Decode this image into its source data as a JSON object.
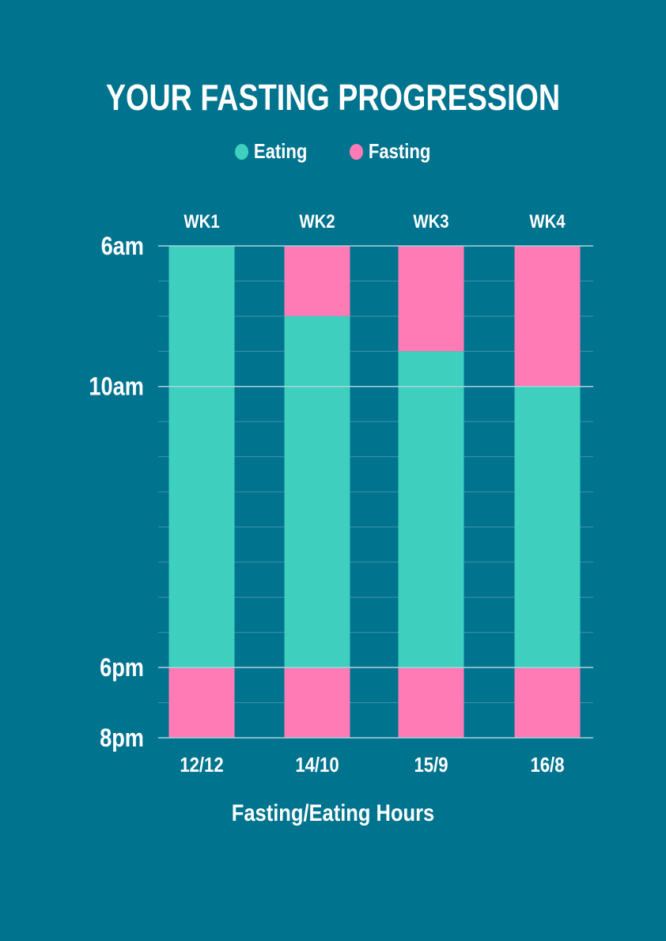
{
  "header": {
    "title": "YOUR FASTING PROGRESSION"
  },
  "legend": [
    {
      "label": "Eating",
      "color": "#3ECFBF"
    },
    {
      "label": "Fasting",
      "color": "#FF7BB6"
    }
  ],
  "chart_data": {
    "type": "bar",
    "title": "YOUR FASTING PROGRESSION",
    "xlabel": "Fasting/Eating Hours",
    "ylabel": "",
    "weeks": [
      "WK1",
      "WK2",
      "WK3",
      "WK4"
    ],
    "categories": [
      "12/12",
      "14/10",
      "15/9",
      "16/8"
    ],
    "y_axis": {
      "start_label": "6am",
      "end_label": "8pm",
      "span_hours": 14,
      "tick_labels": [
        {
          "label": "6am",
          "hour": 0
        },
        {
          "label": "10am",
          "hour": 4
        },
        {
          "label": "6pm",
          "hour": 12
        },
        {
          "label": "8pm",
          "hour": 14
        }
      ]
    },
    "bars": [
      {
        "week": "WK1",
        "category": "12/12",
        "eating_start": "6am",
        "eating_end": "6pm",
        "eating_start_hour": 0,
        "eating_end_hour": 12
      },
      {
        "week": "WK2",
        "category": "14/10",
        "eating_start": "8am",
        "eating_end": "6pm",
        "eating_start_hour": 2,
        "eating_end_hour": 12
      },
      {
        "week": "WK3",
        "category": "15/9",
        "eating_start": "9am",
        "eating_end": "6pm",
        "eating_start_hour": 3,
        "eating_end_hour": 12
      },
      {
        "week": "WK4",
        "category": "16/8",
        "eating_start": "10am",
        "eating_end": "6pm",
        "eating_start_hour": 4,
        "eating_end_hour": 12
      }
    ],
    "colors": {
      "eating": "#3ECFBF",
      "fasting": "#FF7BB6",
      "grid": "#5FA3B4",
      "background": "#00738E"
    },
    "grid": true,
    "legend_position": "top-center"
  }
}
